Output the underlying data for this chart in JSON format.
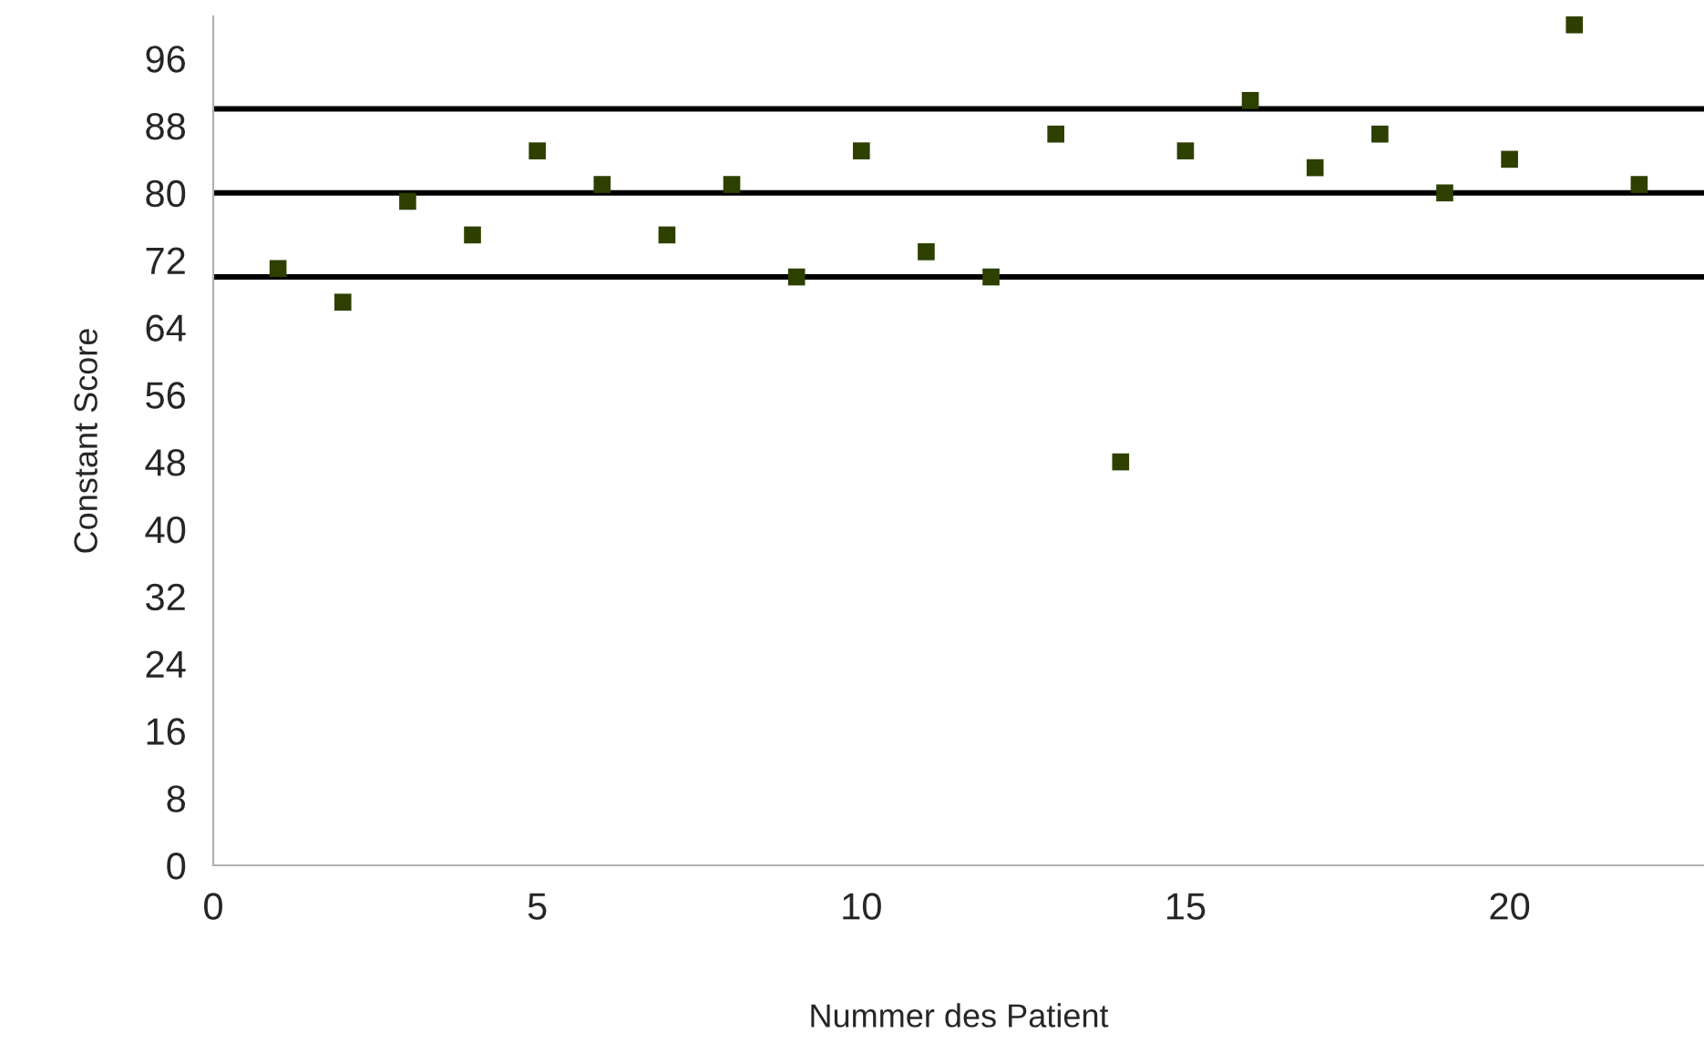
{
  "chart_data": {
    "type": "scatter",
    "xlabel": "Nummer des Patient",
    "ylabel": "Constant Score",
    "x": [
      1,
      2,
      3,
      4,
      5,
      6,
      7,
      8,
      9,
      10,
      11,
      12,
      13,
      14,
      15,
      16,
      17,
      18,
      19,
      20,
      21,
      22
    ],
    "series": [
      {
        "color": "#2d4000",
        "values": [
          71,
          67,
          79,
          75,
          85,
          81,
          75,
          81,
          70,
          85,
          73,
          70,
          87,
          48,
          85,
          91,
          83,
          87,
          80,
          84,
          100,
          81
        ]
      }
    ],
    "xlim": [
      0,
      23
    ],
    "xticks": [
      0,
      5,
      10,
      15,
      20
    ],
    "ylim": [
      0,
      101
    ],
    "yticks": [
      0,
      8,
      16,
      24,
      32,
      40,
      48,
      56,
      64,
      72,
      80,
      88,
      96
    ],
    "ref_lines": [
      {
        "axis": "y",
        "value": 90,
        "color": "#000000"
      },
      {
        "axis": "y",
        "value": 80,
        "color": "#000000"
      },
      {
        "axis": "y",
        "value": 70,
        "color": "#000000"
      }
    ],
    "marker": "square",
    "grid": false,
    "legend": false
  }
}
